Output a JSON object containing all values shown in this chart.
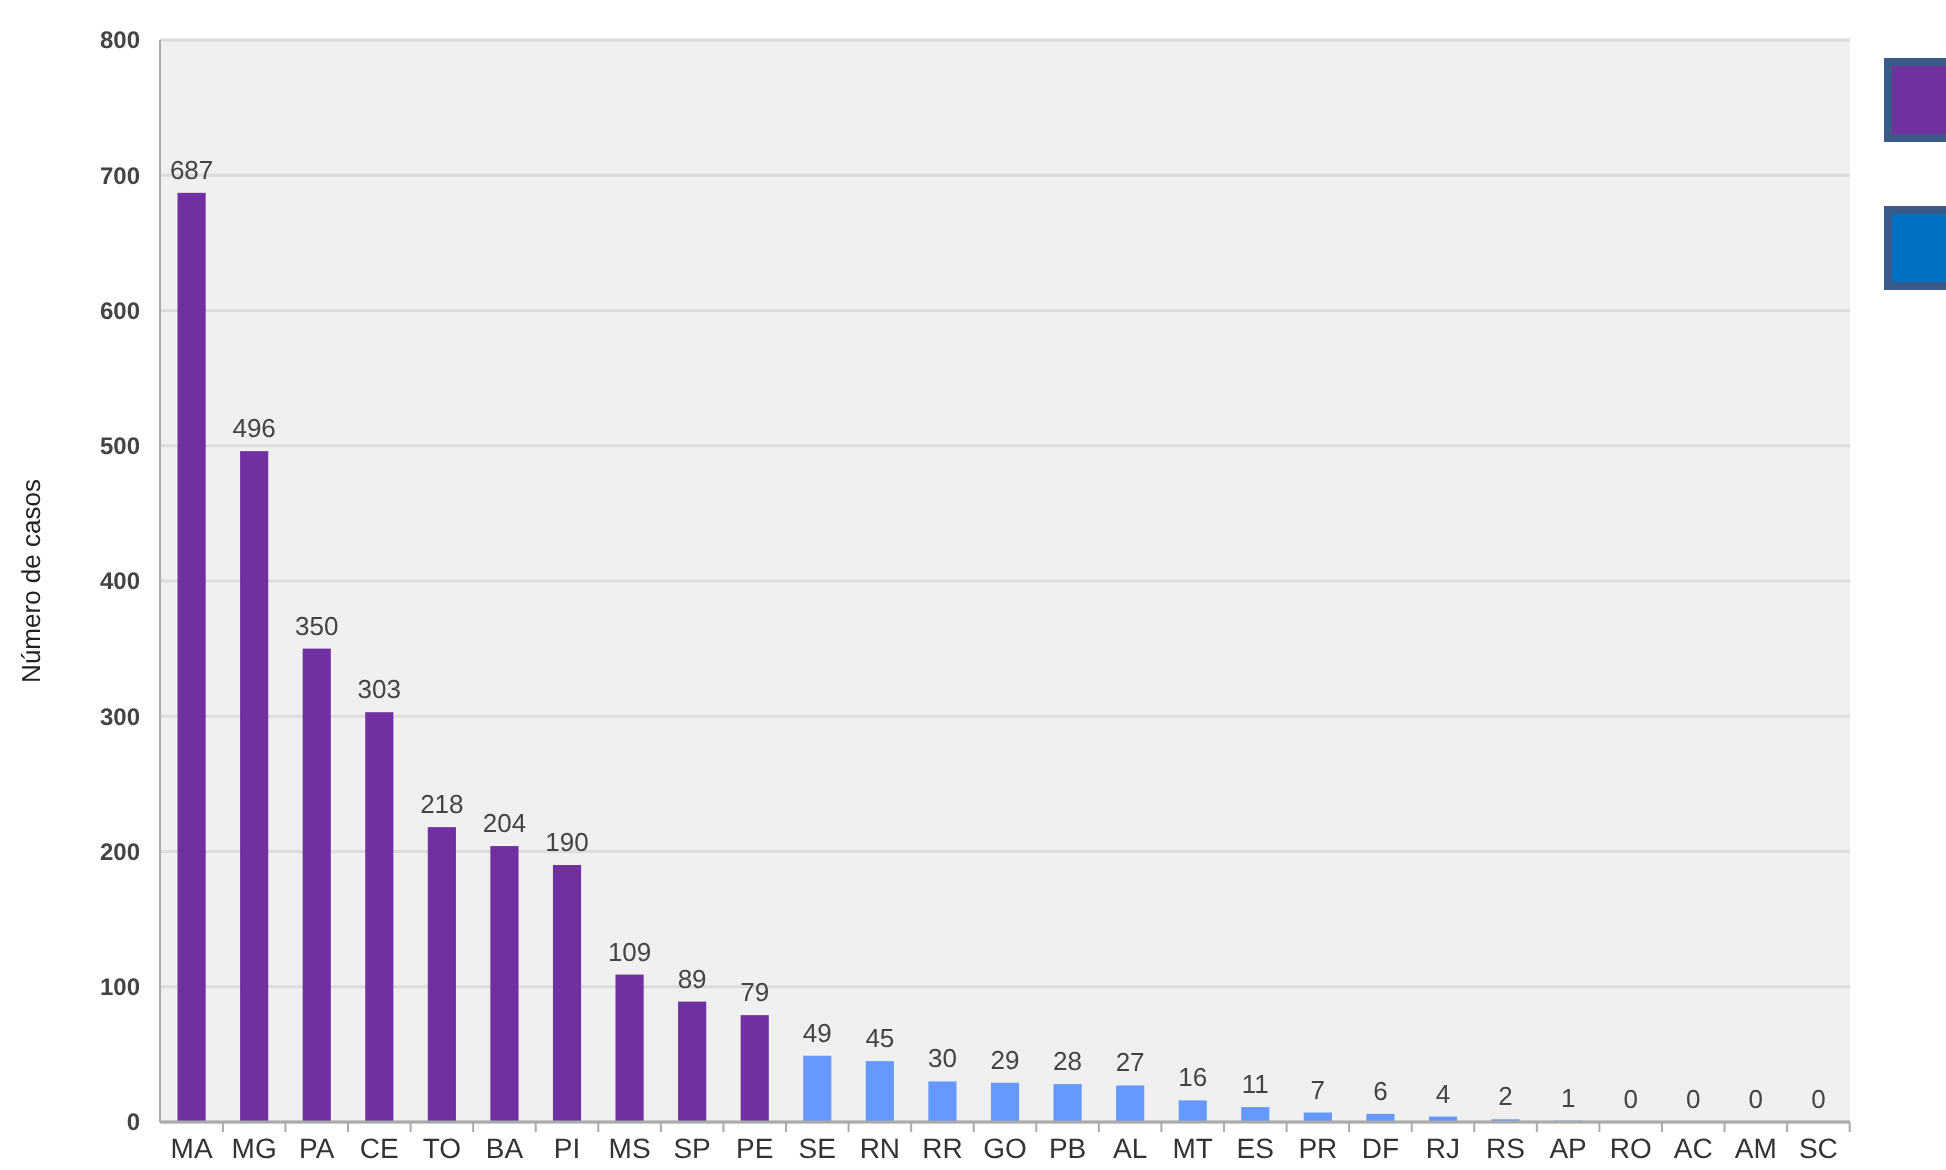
{
  "chart_data": {
    "type": "bar",
    "ylabel": "Número de casos",
    "categories": [
      "MA",
      "MG",
      "PA",
      "CE",
      "TO",
      "BA",
      "PI",
      "MS",
      "SP",
      "PE",
      "SE",
      "RN",
      "RR",
      "GO",
      "PB",
      "AL",
      "MT",
      "ES",
      "PR",
      "DF",
      "RJ",
      "RS",
      "AP",
      "RO",
      "AC",
      "AM",
      "SC"
    ],
    "values": [
      687,
      496,
      350,
      303,
      218,
      204,
      190,
      109,
      89,
      79,
      49,
      45,
      30,
      29,
      28,
      27,
      16,
      11,
      7,
      6,
      4,
      2,
      1,
      0,
      0,
      0,
      0
    ],
    "colors": [
      "#7030a0",
      "#7030a0",
      "#7030a0",
      "#7030a0",
      "#7030a0",
      "#7030a0",
      "#7030a0",
      "#7030a0",
      "#7030a0",
      "#7030a0",
      "#6699ff",
      "#6699ff",
      "#6699ff",
      "#6699ff",
      "#6699ff",
      "#6699ff",
      "#6699ff",
      "#6699ff",
      "#6699ff",
      "#6699ff",
      "#6699ff",
      "#6699ff",
      "#6699ff",
      "#6699ff",
      "#6699ff",
      "#6699ff",
      "#6699ff"
    ],
    "ylim": [
      0,
      800
    ],
    "yticks": [
      0,
      100,
      200,
      300,
      400,
      500,
      600,
      700,
      800
    ],
    "grid": "y",
    "data_labels": true
  }
}
